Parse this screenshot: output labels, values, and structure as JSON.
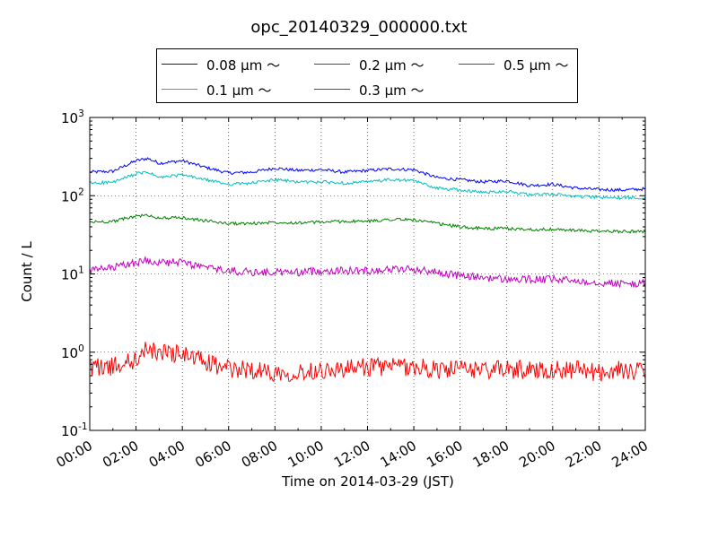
{
  "chart_data": {
    "type": "line",
    "title": "opc_20140329_000000.txt",
    "xlabel": "Time on 2014-03-29 (JST)",
    "ylabel": "Count / L",
    "yscale": "log",
    "xlim": [
      "2014-03-29 00:00",
      "2014-03-30 00:00"
    ],
    "ylim": [
      0.1,
      1000
    ],
    "x_ticks": [
      "00:00",
      "02:00",
      "04:00",
      "06:00",
      "08:00",
      "10:00",
      "12:00",
      "14:00",
      "16:00",
      "18:00",
      "20:00",
      "22:00",
      "24:00"
    ],
    "y_ticks": [
      {
        "value": 0.1,
        "base": "10",
        "exp": "-1"
      },
      {
        "value": 1,
        "base": "10",
        "exp": "0"
      },
      {
        "value": 10,
        "base": "10",
        "exp": "1"
      },
      {
        "value": 100,
        "base": "10",
        "exp": "2"
      },
      {
        "value": 1000,
        "base": "10",
        "exp": "3"
      }
    ],
    "grid": true,
    "legend_position": "top-center, above plot",
    "x_hours": [
      0,
      1,
      2,
      2.5,
      3,
      4,
      5,
      6,
      7,
      8,
      9,
      10,
      11,
      12,
      13,
      14,
      15,
      16,
      17,
      18,
      19,
      20,
      21,
      22,
      23,
      24
    ],
    "series": [
      {
        "name": "0.08 μm ～",
        "color": "#0000ff",
        "jitter": 0.02,
        "values": [
          200,
          205,
          280,
          300,
          260,
          280,
          230,
          195,
          200,
          225,
          210,
          215,
          200,
          210,
          220,
          215,
          170,
          160,
          150,
          155,
          135,
          140,
          125,
          120,
          118,
          122
        ]
      },
      {
        "name": "0.1 μm ～",
        "color": "#00bfbf",
        "jitter": 0.02,
        "values": [
          145,
          148,
          190,
          200,
          170,
          185,
          160,
          140,
          145,
          160,
          150,
          150,
          145,
          150,
          160,
          155,
          125,
          118,
          110,
          115,
          102,
          105,
          98,
          95,
          94,
          95
        ]
      },
      {
        "name": "0.2 μm ～",
        "color": "#008000",
        "jitter": 0.02,
        "values": [
          46,
          47,
          55,
          56,
          52,
          52,
          48,
          44,
          44,
          46,
          45,
          46,
          47,
          47,
          50,
          49,
          44,
          40,
          38,
          38,
          37,
          37,
          36,
          35,
          35,
          35
        ]
      },
      {
        "name": "0.3 μm ～",
        "color": "#bf00bf",
        "jitter": 0.05,
        "values": [
          11,
          12,
          14,
          15,
          14,
          14,
          12,
          11,
          10.5,
          10.5,
          10.5,
          11,
          11,
          11,
          11.5,
          11.5,
          10.5,
          9.5,
          9,
          8.5,
          8.5,
          8.5,
          8.2,
          7.8,
          7.5,
          7.5
        ]
      },
      {
        "name": "0.5 μm ～",
        "color": "#ff0000",
        "jitter": 0.12,
        "values": [
          0.65,
          0.65,
          0.8,
          1.1,
          1.0,
          0.95,
          0.75,
          0.6,
          0.6,
          0.55,
          0.55,
          0.6,
          0.6,
          0.65,
          0.65,
          0.65,
          0.6,
          0.6,
          0.6,
          0.6,
          0.6,
          0.6,
          0.6,
          0.55,
          0.6,
          0.55
        ]
      }
    ]
  }
}
